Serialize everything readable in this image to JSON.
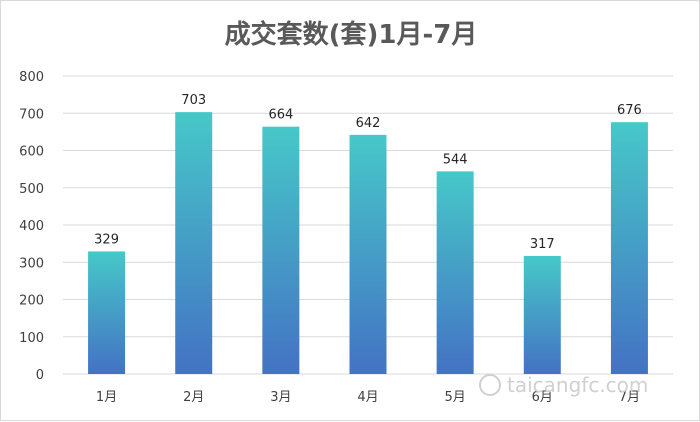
{
  "chart_data": {
    "type": "bar",
    "title": "成交套数(套)1月-7月",
    "categories": [
      "1月",
      "2月",
      "3月",
      "4月",
      "5月",
      "6月",
      "7月"
    ],
    "values": [
      329,
      703,
      664,
      642,
      544,
      317,
      676
    ],
    "ylim": [
      0,
      800
    ],
    "yticks": [
      0,
      100,
      200,
      300,
      400,
      500,
      600,
      700,
      800
    ],
    "grid": true,
    "legend": "none",
    "colors": {
      "bar_top": "#46c8c8",
      "bar_bottom": "#4472c4",
      "grid": "#d9d9d9"
    }
  },
  "watermark": "taicangfc.com"
}
